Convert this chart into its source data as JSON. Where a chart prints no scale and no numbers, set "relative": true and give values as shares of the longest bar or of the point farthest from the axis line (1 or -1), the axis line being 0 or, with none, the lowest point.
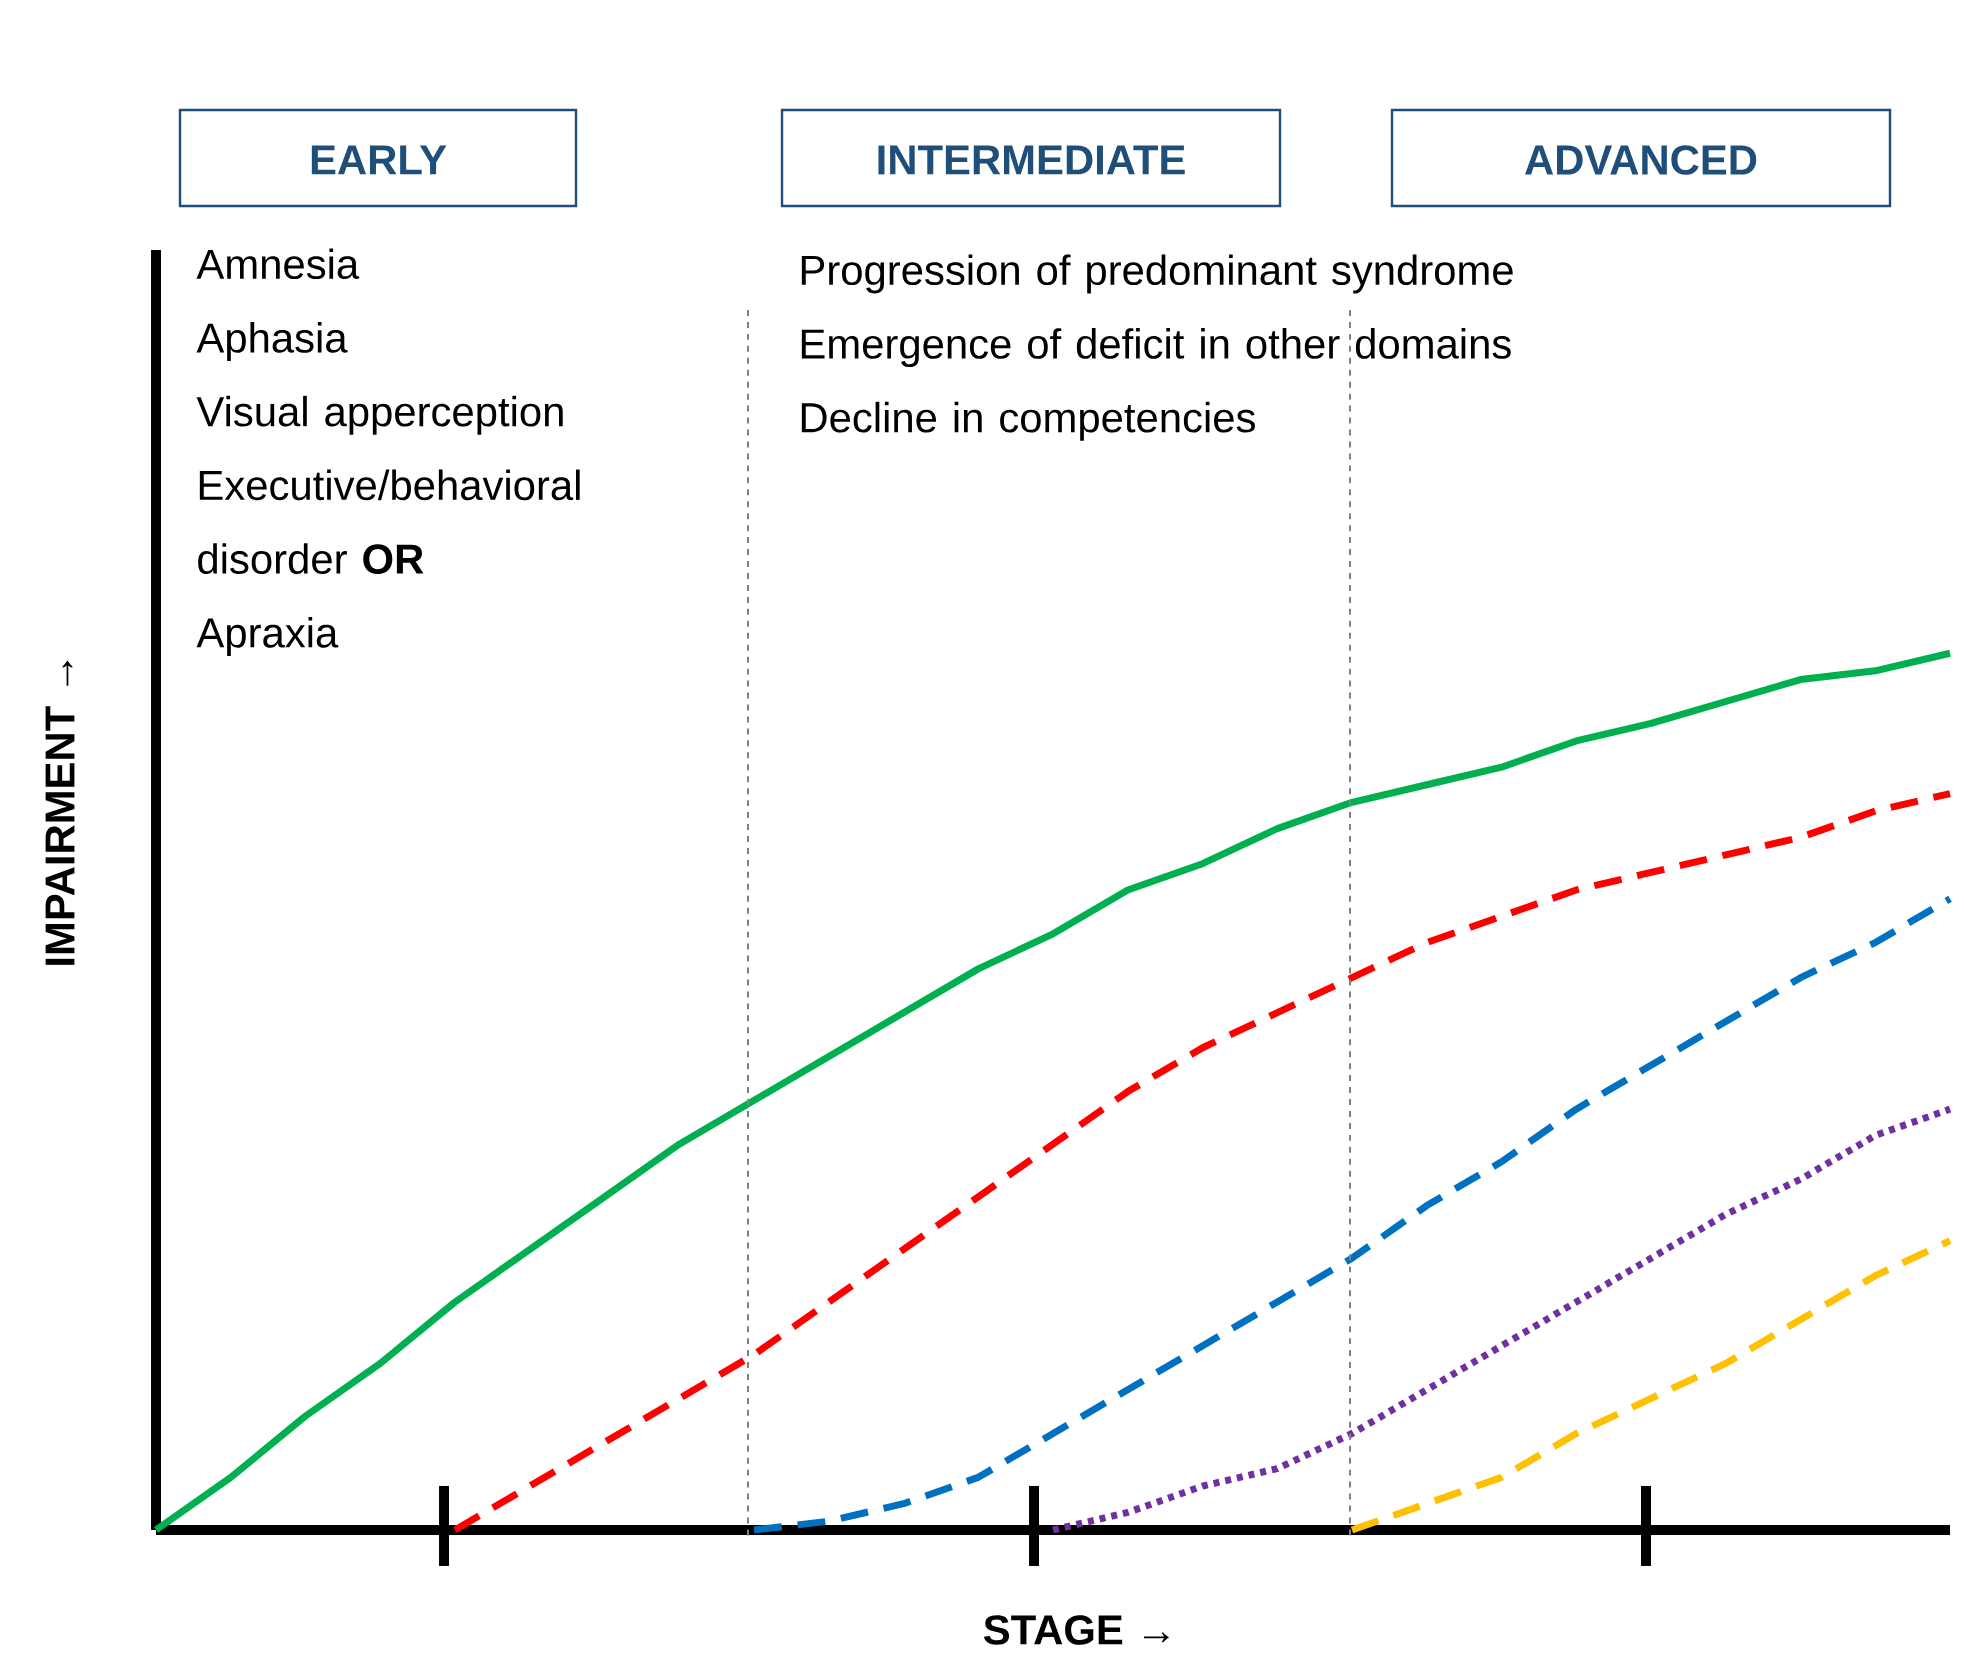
{
  "chart_data": {
    "type": "line",
    "relative": true,
    "xlabel": "STAGE  →",
    "ylabel": "IMPAIRMENT  →",
    "marker": "none",
    "categories": [
      null,
      null,
      null,
      null,
      null,
      null,
      null,
      null,
      null,
      null,
      null,
      null,
      null,
      null,
      null,
      null,
      null,
      null,
      null,
      null,
      null,
      null,
      null,
      null,
      null
    ],
    "series": [
      {
        "color": "#00b050",
        "line_style": "solid",
        "values": [
          0,
          0.06,
          0.13,
          0.19,
          0.26,
          0.32,
          0.38,
          0.44,
          0.49,
          0.54,
          0.59,
          0.64,
          0.68,
          0.73,
          0.76,
          0.8,
          0.83,
          0.85,
          0.87,
          0.9,
          0.92,
          0.945,
          0.97,
          0.98,
          1.0
        ]
      },
      {
        "color": "#ff0000",
        "line_style": "dashed",
        "values": [
          null,
          null,
          null,
          null,
          0,
          0.05,
          0.1,
          0.15,
          0.2,
          0.26,
          0.32,
          0.38,
          0.44,
          0.5,
          0.55,
          0.59,
          0.63,
          0.67,
          0.7,
          0.73,
          0.75,
          0.77,
          0.79,
          0.82,
          0.84
        ]
      },
      {
        "color": "#0070c0",
        "line_style": "dashed",
        "values": [
          null,
          null,
          null,
          null,
          null,
          null,
          null,
          null,
          0,
          0.01,
          0.03,
          0.06,
          0.11,
          0.16,
          0.21,
          0.26,
          0.31,
          0.37,
          0.42,
          0.48,
          0.53,
          0.58,
          0.63,
          0.67,
          0.72
        ]
      },
      {
        "color": "#7030a0",
        "line_style": "dotted",
        "values": [
          null,
          null,
          null,
          null,
          null,
          null,
          null,
          null,
          null,
          null,
          null,
          null,
          0,
          0.02,
          0.05,
          0.07,
          0.11,
          0.16,
          0.21,
          0.26,
          0.31,
          0.36,
          0.4,
          0.45,
          0.48
        ]
      },
      {
        "color": "#ffc000",
        "line_style": "dashed",
        "values": [
          null,
          null,
          null,
          null,
          null,
          null,
          null,
          null,
          null,
          null,
          null,
          null,
          null,
          null,
          null,
          null,
          0,
          0.03,
          0.06,
          0.11,
          0.15,
          0.19,
          0.24,
          0.29,
          0.33
        ]
      }
    ],
    "annotations": [
      "EARLY",
      "INTERMEDIATE",
      "ADVANCED",
      "Amnesia",
      "Aphasia",
      "Visual apperception",
      "Executive/behavioral disorder **OR**",
      "Apraxia",
      "Progression of predominant syndrome",
      "Emergence of deficit in other domains",
      "Decline in competencies"
    ]
  }
}
